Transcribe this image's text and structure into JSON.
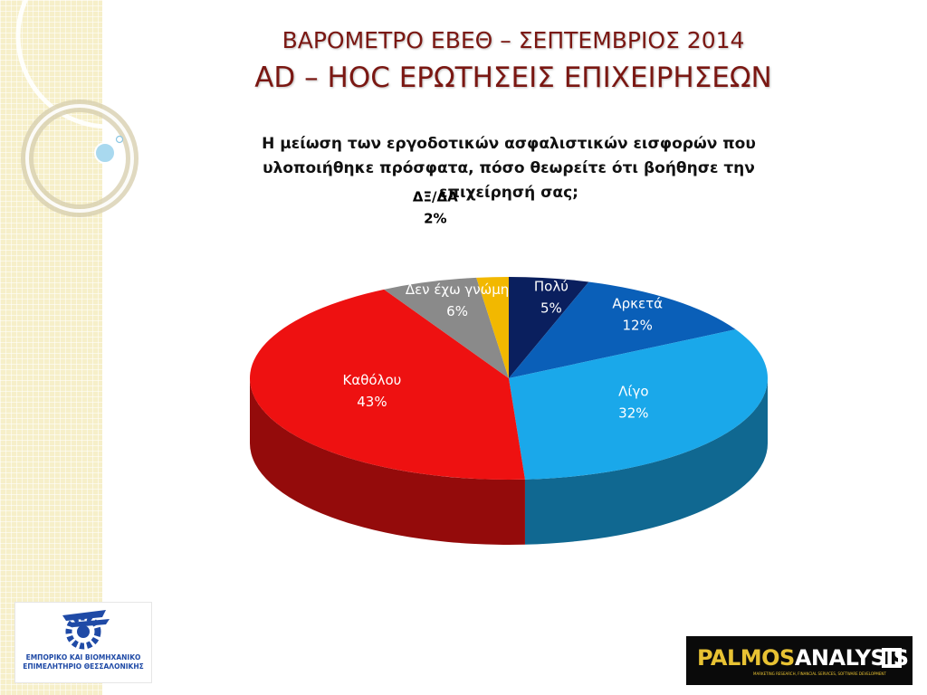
{
  "header": {
    "title_line1": "ΒΑΡΟΜΕΤΡΟ ΕΒΕΘ – ΣΕΠΤΕΜΒΡΙΟΣ 2014",
    "title_line2": "AD – HOC ΕΡΩΤΗΣΕΙΣ ΕΠΙΧΕΙΡΗΣΕΩΝ"
  },
  "chart_data": {
    "type": "pie",
    "title": "Η μείωση των εργοδοτικών ασφαλιστικών εισφορών που υλοποιήθηκε πρόσφατα, πόσο θεωρείτε ότι βοήθησε την επιχείρησή σας;",
    "slices": [
      {
        "name": "Πολύ",
        "value": 5,
        "label": "5%",
        "color": "#0a1f5e"
      },
      {
        "name": "Αρκετά",
        "value": 12,
        "label": "12%",
        "color": "#0a5fb8"
      },
      {
        "name": "Λίγο",
        "value": 32,
        "label": "32%",
        "color": "#1aa8ea"
      },
      {
        "name": "Καθόλου",
        "value": 43,
        "label": "43%",
        "color": "#ee1111"
      },
      {
        "name": "Δεν έχω γνώμη",
        "value": 6,
        "label": "6%",
        "color": "#8a8a8a"
      },
      {
        "name": "ΔΞ/ΔΑ",
        "value": 2,
        "label": "2%",
        "color": "#f2b800"
      }
    ]
  },
  "logos": {
    "left_text_line1": "ΕΜΠΟΡΙΚΟ ΚΑΙ ΒΙΟΜΗΧΑΝΙΚΟ",
    "left_text_line2": "ΕΠΙΜΕΛΗΤΗΡΙΟ ΘΕΣΣΑΛΟΝΙΚΗΣ",
    "right_word_1": "PALMOS",
    "right_word_2": "ANALYSIS",
    "right_tagline": "MARKETING RESEARCH, FINANCIAL SERVICES, SOFTWARE DEVELOPMENT"
  }
}
